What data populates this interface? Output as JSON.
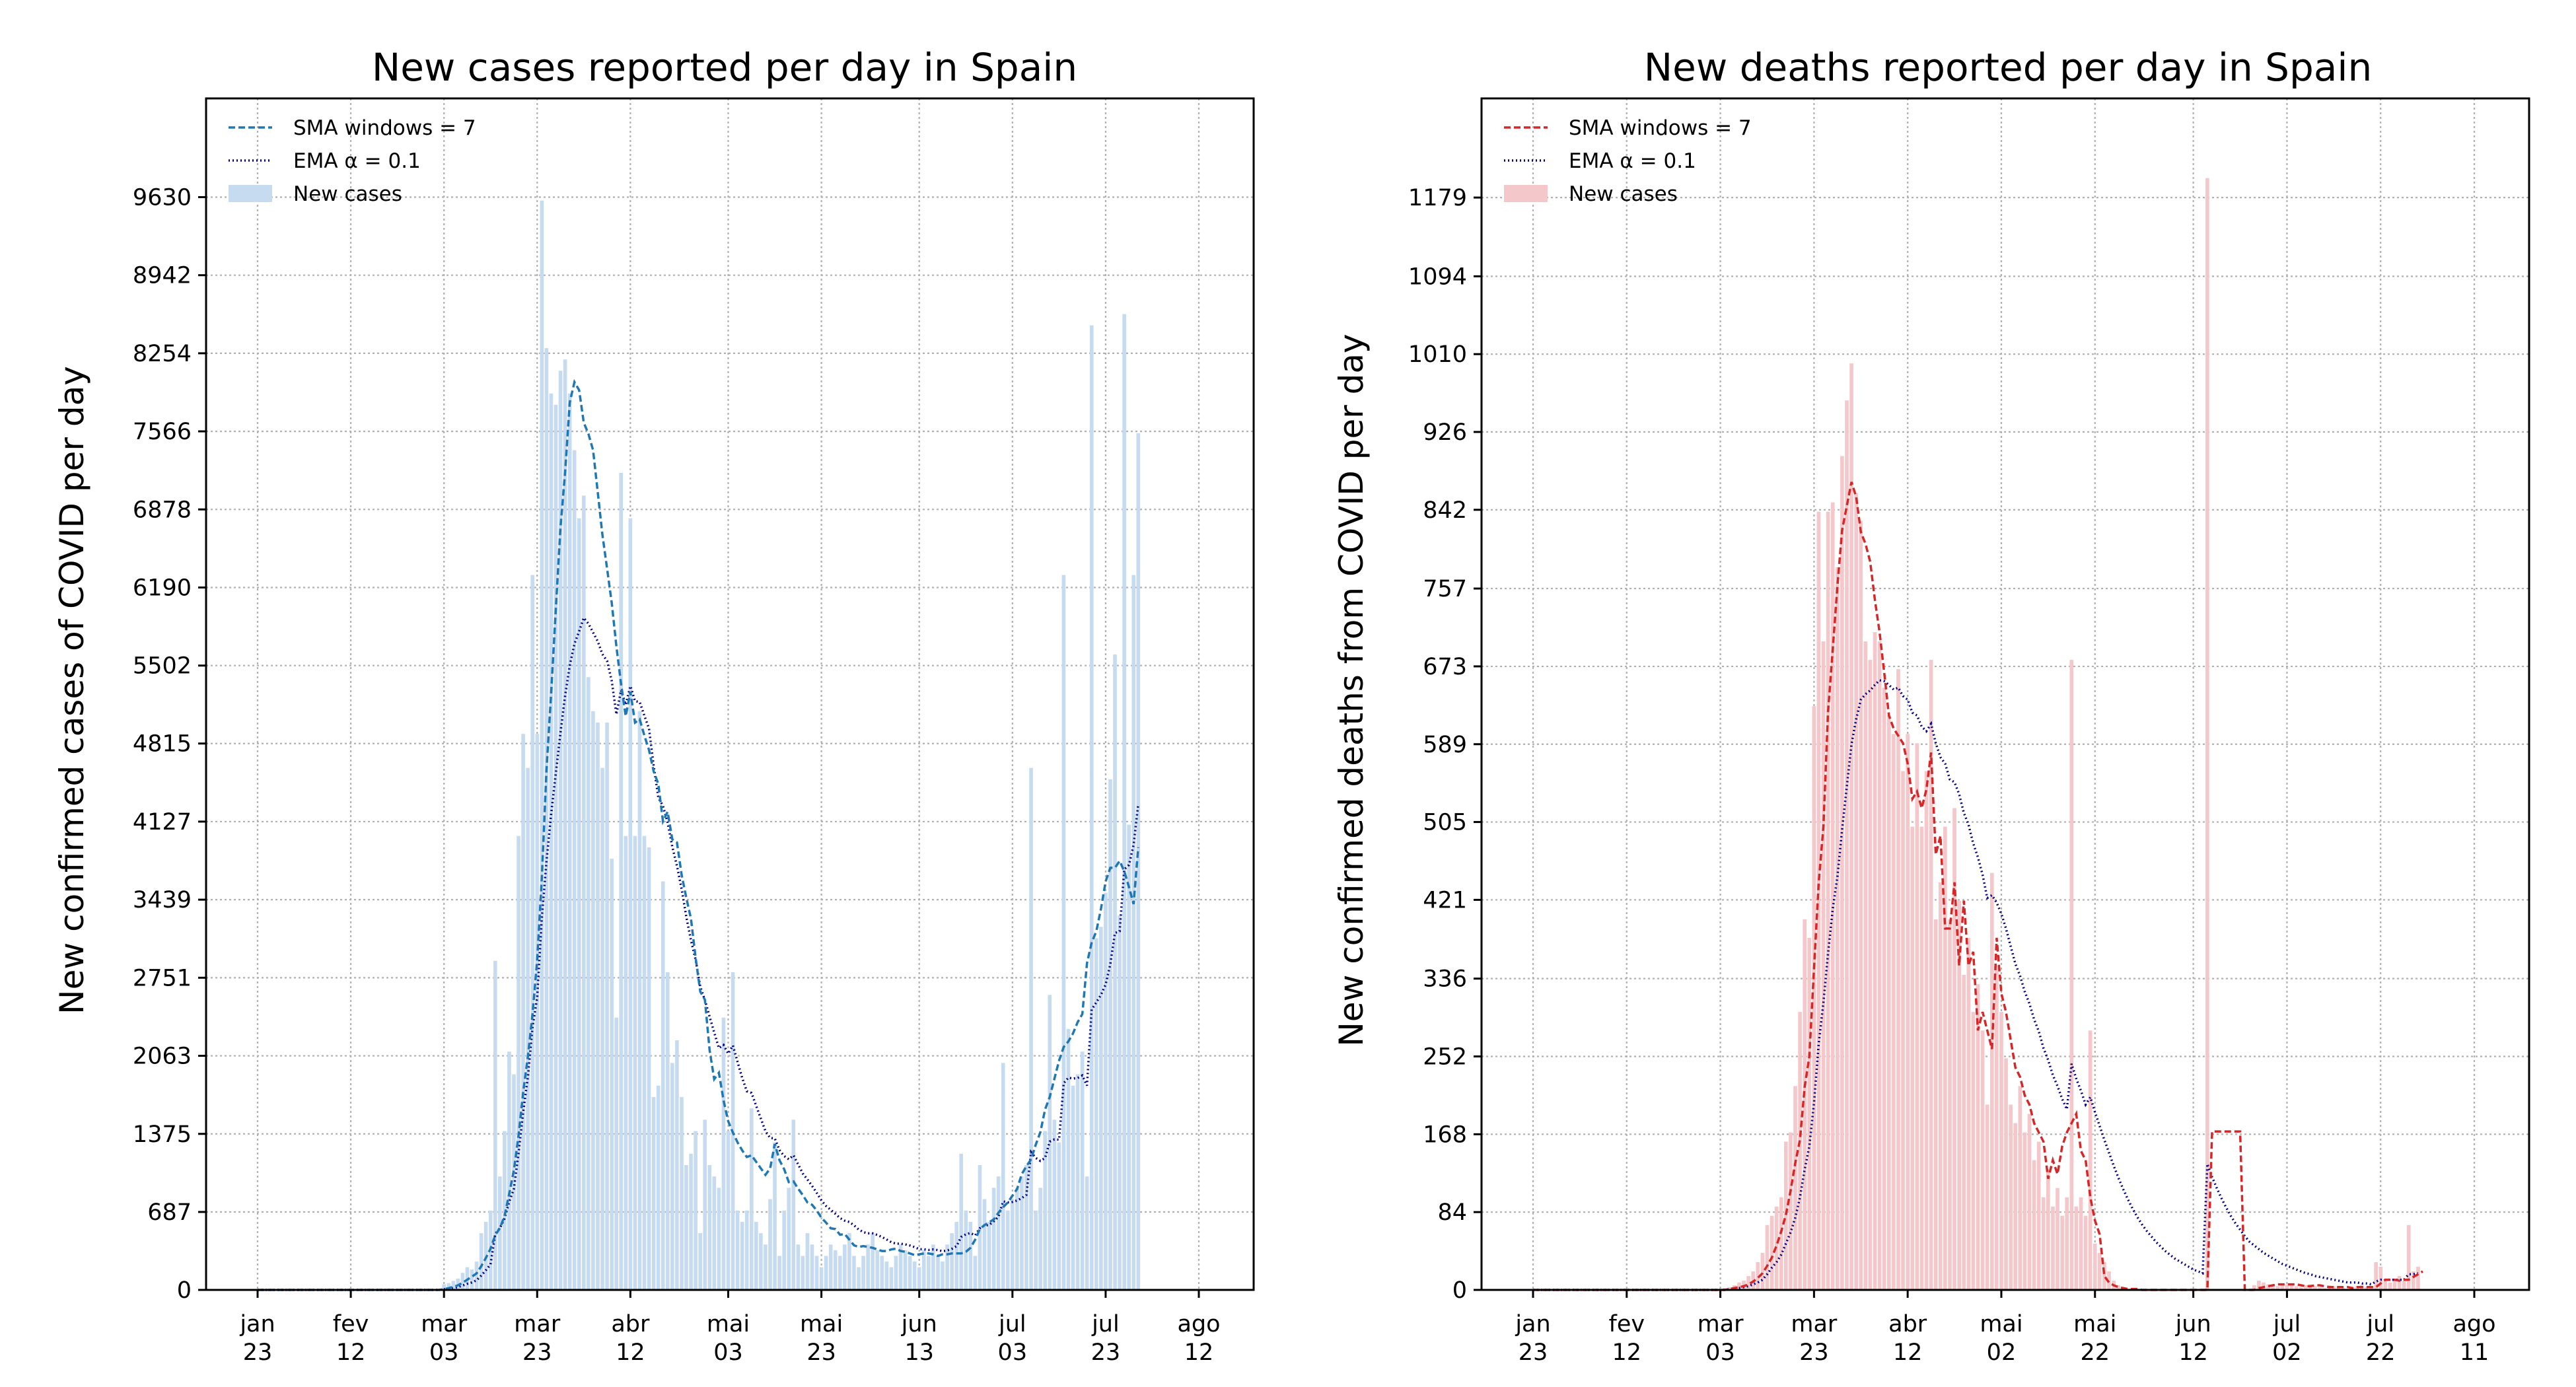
{
  "chart_data": [
    {
      "type": "bar",
      "title": "New cases reported per day in Spain",
      "ylabel": "New confirmed cases of COVID per day",
      "xlabel": "",
      "x_start": "2020-01-23",
      "ylim": [
        0,
        10500
      ],
      "grid": true,
      "legend_position": "top-left",
      "yticks": [
        0,
        687,
        1375,
        2063,
        2751,
        3439,
        4127,
        4815,
        5502,
        6190,
        6878,
        7566,
        8254,
        8942,
        9630
      ],
      "xticks": [
        {
          "date": "2020-01-23",
          "label": [
            "jan",
            "23"
          ]
        },
        {
          "date": "2020-02-12",
          "label": [
            "fev",
            "12"
          ]
        },
        {
          "date": "2020-03-03",
          "label": [
            "mar",
            "03"
          ]
        },
        {
          "date": "2020-03-23",
          "label": [
            "mar",
            "23"
          ]
        },
        {
          "date": "2020-04-12",
          "label": [
            "abr",
            "12"
          ]
        },
        {
          "date": "2020-05-03",
          "label": [
            "mai",
            "03"
          ]
        },
        {
          "date": "2020-05-23",
          "label": [
            "mai",
            "23"
          ]
        },
        {
          "date": "2020-06-13",
          "label": [
            "jun",
            "13"
          ]
        },
        {
          "date": "2020-07-03",
          "label": [
            "jul",
            "03"
          ]
        },
        {
          "date": "2020-07-23",
          "label": [
            "jul",
            "23"
          ]
        },
        {
          "date": "2020-08-12",
          "label": [
            "ago",
            "12"
          ]
        }
      ],
      "legend": [
        {
          "label": "SMA windows = 7",
          "style": "dashed",
          "color": "#1f77b4"
        },
        {
          "label": "EMA α = 0.1",
          "style": "dotted",
          "color": "#000080"
        },
        {
          "label": "New cases",
          "style": "bar",
          "color": "#c6dbef"
        }
      ],
      "colors": {
        "bar": "#c6dbef",
        "sma": "#1f77b4",
        "ema": "#000080"
      },
      "values": [
        0,
        0,
        0,
        0,
        0,
        0,
        0,
        0,
        0,
        0,
        0,
        0,
        0,
        0,
        0,
        0,
        0,
        0,
        0,
        0,
        0,
        0,
        0,
        0,
        0,
        0,
        0,
        0,
        0,
        0,
        0,
        0,
        0,
        0,
        0,
        0,
        0,
        0,
        0,
        0,
        50,
        60,
        80,
        100,
        150,
        200,
        180,
        250,
        500,
        600,
        700,
        2900,
        1000,
        1400,
        2100,
        1900,
        4000,
        4900,
        4600,
        6300,
        4900,
        9600,
        8300,
        7900,
        7800,
        8100,
        8200,
        7900,
        7400,
        6800,
        7000,
        5400,
        5100,
        5000,
        4600,
        5000,
        3800,
        2400,
        7200,
        4000,
        6800,
        4000,
        5100,
        4000,
        3900,
        1700,
        1800,
        3600,
        2800,
        2000,
        2200,
        1700,
        1100,
        1200,
        1400,
        500,
        1500,
        1100,
        1000,
        900,
        2400,
        1400,
        2800,
        700,
        600,
        700,
        1600,
        600,
        500,
        400,
        800,
        1300,
        300,
        700,
        900,
        1500,
        400,
        300,
        500,
        400,
        300,
        200,
        300,
        400,
        350,
        300,
        400,
        500,
        300,
        200,
        300,
        400,
        500,
        350,
        300,
        250,
        200,
        300,
        400,
        350,
        300,
        250,
        200,
        350,
        300,
        400,
        300,
        250,
        400,
        500,
        600,
        1200,
        700,
        600,
        300,
        1100,
        800,
        600,
        900,
        1000,
        2000,
        700,
        800,
        900,
        1000,
        1100,
        4600,
        700,
        900,
        1400,
        2600,
        1500,
        1300,
        6300,
        2300,
        1800,
        1900,
        2100,
        1000,
        8500,
        3100,
        3200,
        3500,
        4500,
        5600,
        3300,
        8600,
        4100,
        6300,
        7550
      ],
      "sma": [
        0,
        0,
        0,
        0,
        0,
        0,
        0,
        0,
        0,
        0,
        0,
        0,
        0,
        0,
        0,
        0,
        0,
        0,
        0,
        0,
        0,
        0,
        0,
        0,
        0,
        0,
        0,
        0,
        0,
        0,
        0,
        0,
        0,
        0,
        0,
        0,
        0,
        0,
        0,
        0,
        7,
        16,
        27,
        41,
        63,
        91,
        117,
        146,
        209,
        283,
        364,
        483,
        544,
        651,
        846,
        1054,
        1358,
        1742,
        2057,
        2429,
        2909,
        3629,
        4586,
        5257,
        6000,
        6714,
        7209,
        7821,
        8000,
        7929,
        7643,
        7543,
        7400,
        7029,
        6657,
        6357,
        6057,
        5671,
        5343,
        5057,
        5271,
        5000,
        5029,
        4886,
        4757,
        4571,
        4457,
        4129,
        4214,
        3971,
        3943,
        3657,
        3457,
        3271,
        2929,
        2629,
        2557,
        2114,
        1857,
        1914,
        1671,
        1486,
        1386,
        1300,
        1229,
        1171,
        1186,
        1129,
        1071,
        1014,
        1071,
        1286,
        1143,
        1064,
        950,
        957,
        893,
        836,
        771,
        750,
        700,
        636,
        593,
        543,
        536,
        486,
        493,
        443,
        393,
        379,
        386,
        379,
        371,
        357,
        343,
        343,
        357,
        364,
        343,
        336,
        321,
        307,
        314,
        321,
        321,
        314,
        300,
        314,
        314,
        321,
        321,
        321,
        336,
        371,
        443,
        536,
        571,
        596,
        621,
        681,
        730,
        770,
        830,
        890,
        1020,
        1090,
        1150,
        1280,
        1390,
        1590,
        1700,
        1860,
        2020,
        2140,
        2190,
        2260,
        2360,
        2430,
        2880,
        3060,
        3160,
        3360,
        3600,
        3720,
        3720,
        3780,
        3690,
        3550,
        3400,
        3900
      ],
      "ema": [
        0,
        0,
        0,
        0,
        0,
        0,
        0,
        0,
        0,
        0,
        0,
        0,
        0,
        0,
        0,
        0,
        0,
        0,
        0,
        0,
        0,
        0,
        0,
        0,
        0,
        0,
        0,
        0,
        0,
        0,
        0,
        0,
        0,
        0,
        0,
        0,
        0,
        0,
        0,
        0,
        5,
        10,
        17,
        25,
        38,
        54,
        66,
        85,
        127,
        174,
        226,
        494,
        545,
        630,
        777,
        890,
        1201,
        1571,
        1874,
        2317,
        2575,
        3278,
        3780,
        4192,
        4553,
        4908,
        5237,
        5503,
        5693,
        5804,
        5923,
        5871,
        5794,
        5715,
        5603,
        5543,
        5369,
        5072,
        5285,
        5157,
        5321,
        5189,
        5180,
        5062,
        4946,
        4621,
        4339,
        4265,
        4118,
        3906,
        3736,
        3532,
        3289,
        3080,
        2912,
        2671,
        2554,
        2409,
        2268,
        2131,
        2158,
        2082,
        2154,
        2009,
        1868,
        1751,
        1736,
        1622,
        1510,
        1399,
        1339,
        1335,
        1232,
        1179,
        1151,
        1186,
        1107,
        1026,
        973,
        916,
        855,
        789,
        740,
        706,
        670,
        633,
        610,
        599,
        569,
        532,
        509,
        498,
        498,
        484,
        466,
        444,
        420,
        408,
        407,
        401,
        391,
        377,
        359,
        358,
        352,
        357,
        351,
        341,
        347,
        362,
        386,
        467,
        490,
        501,
        481,
        543,
        569,
        572,
        605,
        645,
        780,
        772,
        775,
        788,
        809,
        838,
        1214,
        1163,
        1137,
        1163,
        1307,
        1326,
        1324,
        1822,
        1870,
        1863,
        1867,
        1890,
        1801,
        2471,
        2534,
        2601,
        2691,
        2872,
        3145,
        3161,
        3705,
        3745,
        3920,
        4283
      ],
      "series": [
        {
          "name": "SMA windows = 7"
        },
        {
          "name": "EMA α = 0.1"
        },
        {
          "name": "New cases"
        }
      ]
    },
    {
      "type": "bar",
      "title": "New deaths reported per day in Spain",
      "ylabel": "New confirmed deaths from COVID per day",
      "xlabel": "",
      "x_start": "2020-01-23",
      "ylim": [
        0,
        1286
      ],
      "grid": true,
      "legend_position": "top-left",
      "yticks": [
        0,
        84,
        168,
        252,
        336,
        421,
        505,
        589,
        673,
        757,
        842,
        926,
        1010,
        1094,
        1179
      ],
      "xticks": [
        {
          "date": "2020-01-23",
          "label": [
            "jan",
            "23"
          ]
        },
        {
          "date": "2020-02-12",
          "label": [
            "fev",
            "12"
          ]
        },
        {
          "date": "2020-03-03",
          "label": [
            "mar",
            "03"
          ]
        },
        {
          "date": "2020-03-23",
          "label": [
            "mar",
            "23"
          ]
        },
        {
          "date": "2020-04-12",
          "label": [
            "abr",
            "12"
          ]
        },
        {
          "date": "2020-05-02",
          "label": [
            "mai",
            "02"
          ]
        },
        {
          "date": "2020-05-22",
          "label": [
            "mai",
            "22"
          ]
        },
        {
          "date": "2020-06-12",
          "label": [
            "jun",
            "12"
          ]
        },
        {
          "date": "2020-07-02",
          "label": [
            "jul",
            "02"
          ]
        },
        {
          "date": "2020-07-22",
          "label": [
            "jul",
            "22"
          ]
        },
        {
          "date": "2020-08-11",
          "label": [
            "ago",
            "11"
          ]
        }
      ],
      "legend": [
        {
          "label": "SMA windows = 7",
          "style": "dashed",
          "color": "#d62728"
        },
        {
          "label": "EMA α = 0.1",
          "style": "dotted",
          "color": "#000080"
        },
        {
          "label": "New cases",
          "style": "bar",
          "color": "#f4c7ca"
        }
      ],
      "colors": {
        "bar": "#f4c7ca",
        "sma": "#d62728",
        "ema": "#000080"
      },
      "values": [
        0,
        0,
        0,
        0,
        0,
        0,
        0,
        0,
        0,
        0,
        0,
        0,
        0,
        0,
        0,
        0,
        0,
        0,
        0,
        0,
        0,
        0,
        0,
        0,
        0,
        0,
        0,
        0,
        0,
        0,
        0,
        0,
        0,
        0,
        0,
        0,
        0,
        0,
        0,
        0,
        1,
        2,
        3,
        5,
        8,
        10,
        15,
        20,
        30,
        40,
        70,
        80,
        90,
        100,
        160,
        170,
        220,
        300,
        400,
        380,
        630,
        840,
        700,
        840,
        850,
        780,
        900,
        960,
        1000,
        860,
        830,
        700,
        680,
        710,
        700,
        650,
        620,
        600,
        670,
        560,
        600,
        500,
        590,
        500,
        560,
        680,
        400,
        440,
        500,
        400,
        520,
        420,
        340,
        380,
        300,
        330,
        280,
        200,
        450,
        350,
        300,
        250,
        200,
        180,
        220,
        170,
        190,
        140,
        160,
        100,
        130,
        90,
        110,
        80,
        100,
        680,
        90,
        100,
        80,
        280,
        50,
        40,
        30,
        20,
        10,
        5,
        3,
        0,
        0,
        0,
        0,
        0,
        0,
        0,
        0,
        0,
        0,
        0,
        0,
        0,
        0,
        0,
        0,
        0,
        1200,
        0,
        0,
        0,
        0,
        0,
        0,
        0,
        0,
        0,
        5,
        10,
        8,
        6,
        5,
        4,
        5,
        6,
        5,
        4,
        3,
        5,
        6,
        4,
        3,
        2,
        5,
        4,
        3,
        2,
        1,
        3,
        4,
        5,
        3,
        2,
        30,
        25,
        10,
        8,
        12,
        15,
        10,
        70,
        20,
        25
      ],
      "sma": [
        0,
        0,
        0,
        0,
        0,
        0,
        0,
        0,
        0,
        0,
        0,
        0,
        0,
        0,
        0,
        0,
        0,
        0,
        0,
        0,
        0,
        0,
        0,
        0,
        0,
        0,
        0,
        0,
        0,
        0,
        0,
        0,
        0,
        0,
        0,
        0,
        0,
        0,
        0,
        0,
        0,
        0,
        1,
        2,
        3,
        4,
        6,
        9,
        13,
        18,
        26,
        35,
        48,
        63,
        81,
        107,
        137,
        162,
        219,
        252,
        347,
        440,
        500,
        624,
        691,
        760,
        820,
        846,
        872,
        856,
        818,
        805,
        786,
        745,
        710,
        666,
        620,
        606,
        598,
        590,
        568,
        530,
        538,
        520,
        540,
        580,
        470,
        490,
        390,
        390,
        440,
        350,
        420,
        350,
        365,
        280,
        300,
        280,
        260,
        380,
        320,
        300,
        270,
        240,
        230,
        210,
        200,
        180,
        170,
        160,
        120,
        140,
        125,
        155,
        170,
        180,
        190,
        150,
        140,
        100,
        75,
        60,
        15,
        8,
        5,
        3,
        2,
        1,
        1,
        1,
        0,
        0,
        0,
        0,
        0,
        0,
        0,
        0,
        0,
        0,
        0,
        0,
        0,
        0,
        0,
        171,
        171,
        171,
        171,
        171,
        171,
        171,
        0,
        0,
        0,
        2,
        3,
        4,
        5,
        6,
        6,
        6,
        6,
        6,
        5,
        4,
        4,
        5,
        5,
        4,
        3,
        3,
        3,
        3,
        3,
        2,
        3,
        3,
        3,
        3,
        3,
        7,
        11,
        11,
        11,
        10,
        11,
        11,
        14,
        17,
        20
      ],
      "ema": [
        0,
        0,
        0,
        0,
        0,
        0,
        0,
        0,
        0,
        0,
        0,
        0,
        0,
        0,
        0,
        0,
        0,
        0,
        0,
        0,
        0,
        0,
        0,
        0,
        0,
        0,
        0,
        0,
        0,
        0,
        0,
        0,
        0,
        0,
        0,
        0,
        0,
        0,
        0,
        0,
        0,
        0,
        1,
        1,
        2,
        3,
        4,
        6,
        8,
        11,
        17,
        24,
        30,
        38,
        50,
        62,
        78,
        100,
        130,
        155,
        202,
        266,
        310,
        363,
        411,
        446,
        497,
        543,
        589,
        616,
        637,
        643,
        647,
        653,
        658,
        657,
        653,
        648,
        650,
        641,
        637,
        623,
        620,
        608,
        603,
        611,
        590,
        575,
        568,
        551,
        548,
        535,
        515,
        502,
        482,
        467,
        448,
        423,
        426,
        418,
        406,
        390,
        371,
        352,
        339,
        322,
        309,
        292,
        279,
        261,
        248,
        232,
        220,
        206,
        195,
        244,
        228,
        215,
        200,
        208,
        192,
        177,
        162,
        148,
        134,
        121,
        109,
        98,
        88,
        79,
        71,
        64,
        58,
        52,
        47,
        42,
        38,
        34,
        31,
        28,
        25,
        22,
        20,
        18,
        136,
        122,
        110,
        99,
        89,
        80,
        72,
        65,
        58,
        52,
        48,
        44,
        40,
        37,
        34,
        31,
        28,
        26,
        24,
        22,
        20,
        18,
        17,
        15,
        14,
        13,
        12,
        11,
        10,
        9,
        8,
        8,
        8,
        7,
        7,
        6,
        9,
        11,
        11,
        11,
        11,
        11,
        11,
        17,
        17,
        18
      ],
      "series": [
        {
          "name": "SMA windows = 7"
        },
        {
          "name": "EMA α = 0.1"
        },
        {
          "name": "New cases"
        }
      ]
    }
  ]
}
